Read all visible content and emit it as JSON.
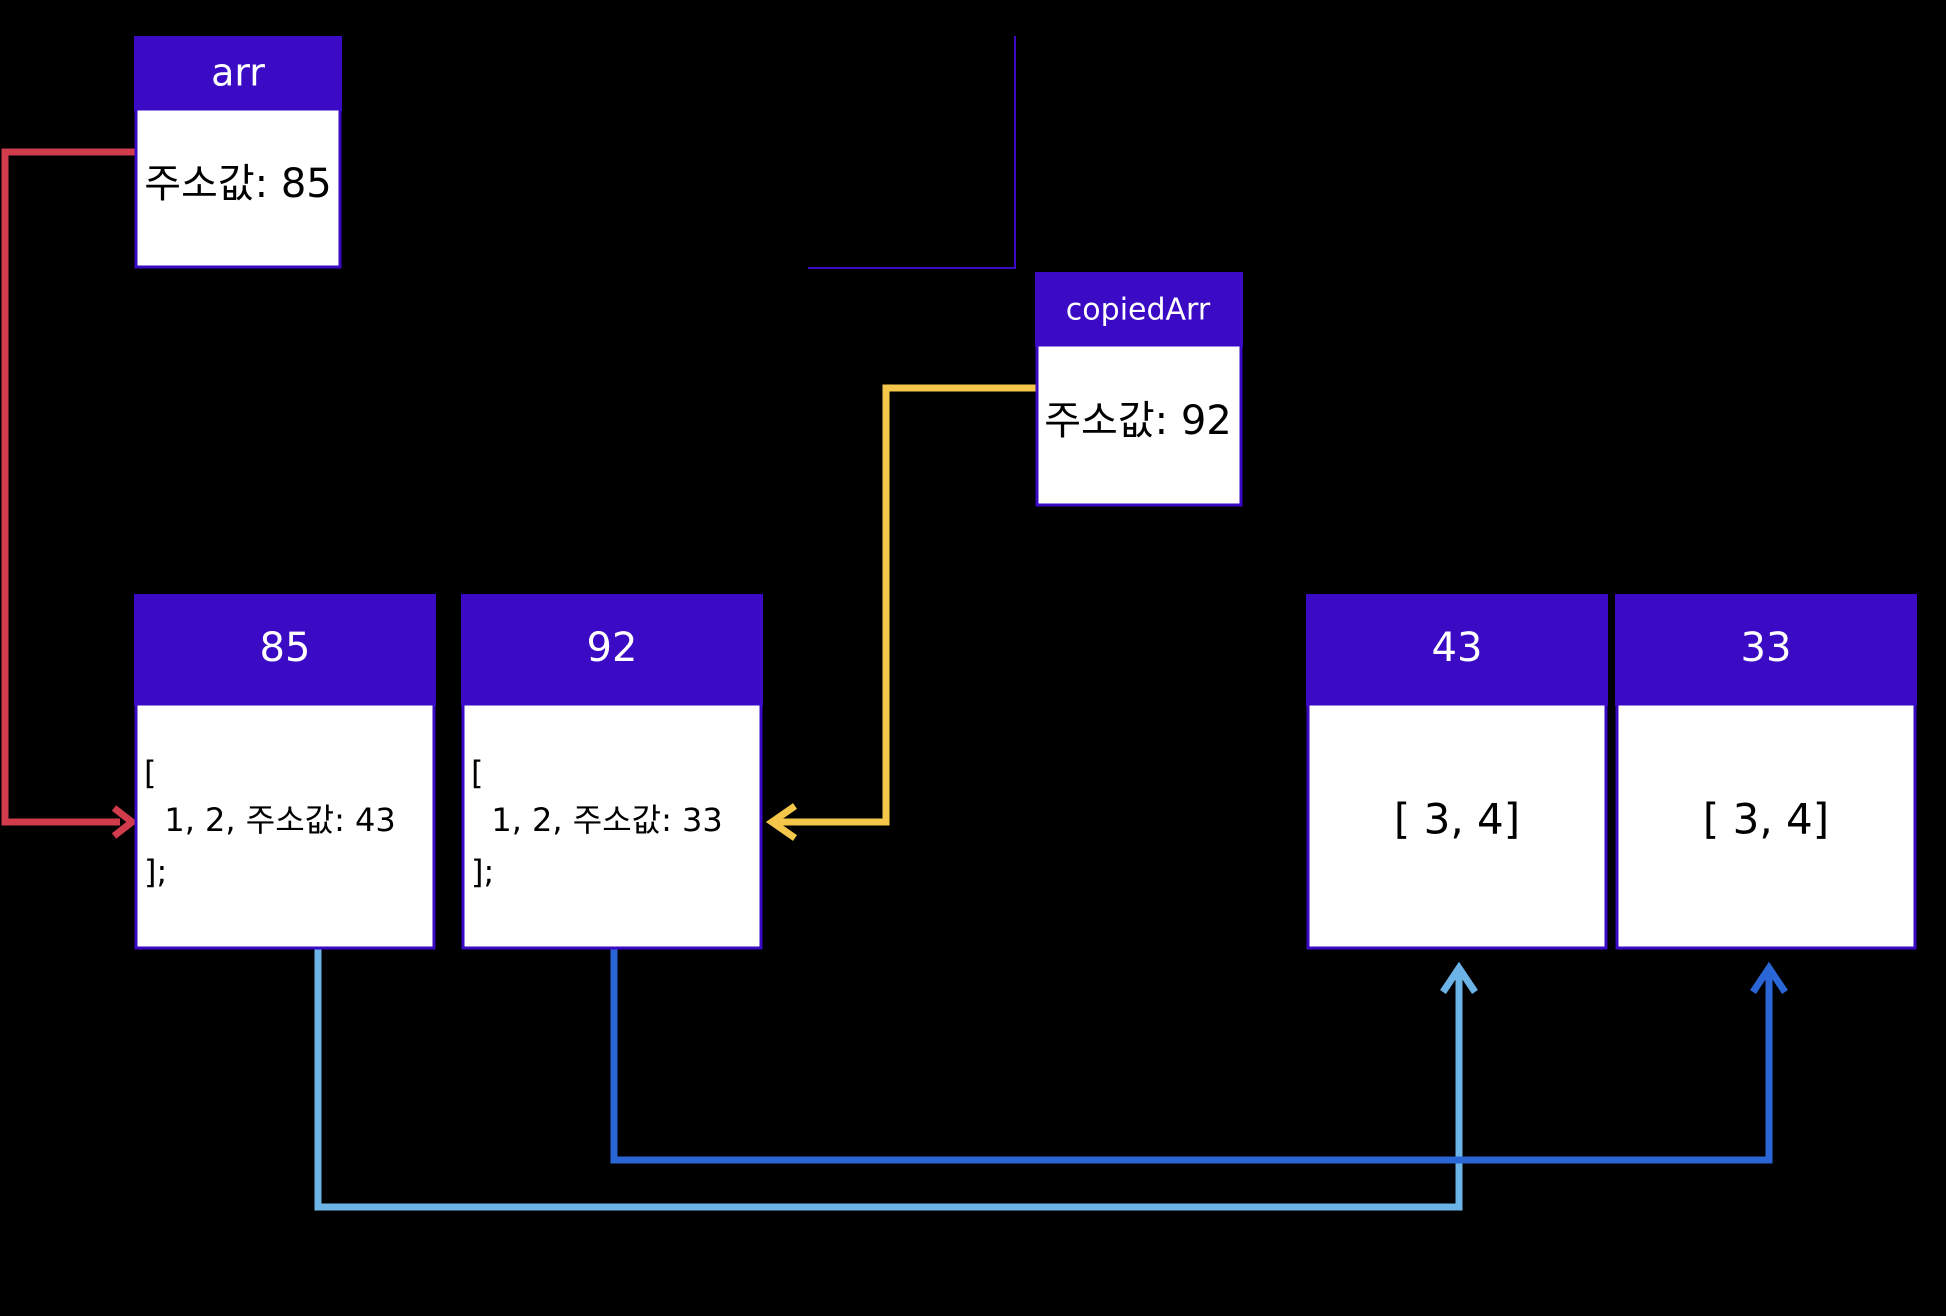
{
  "colors": {
    "background": "#000000",
    "box_header": "#3a0ac4",
    "box_border": "#3a0ac4",
    "box_body": "#ffffff",
    "arrow_arr": "#d13b4b",
    "arrow_copied": "#f4c74a",
    "arrow_43": "#6cb4e8",
    "arrow_33": "#2a66d6",
    "fragment_line": "#3a0ac4"
  },
  "variables": {
    "arr": {
      "name": "arr",
      "value": "주소값: 85"
    },
    "copiedArr": {
      "name": "copiedArr",
      "value": "주소값: 92"
    }
  },
  "heap": {
    "h85": {
      "address": "85",
      "line1": "[",
      "line2": "  1, 2, 주소값: 43",
      "line3": "];"
    },
    "h92": {
      "address": "92",
      "line1": "[",
      "line2": "  1, 2, 주소값: 33",
      "line3": "];"
    },
    "h43": {
      "address": "43",
      "content": "[ 3, 4]"
    },
    "h33": {
      "address": "33",
      "content": "[ 3, 4]"
    }
  },
  "arrows": [
    {
      "from": "arr",
      "to": "85",
      "color_key": "arrow_arr"
    },
    {
      "from": "copiedArr",
      "to": "92",
      "color_key": "arrow_copied"
    },
    {
      "from": "85",
      "to": "43",
      "color_key": "arrow_43"
    },
    {
      "from": "92",
      "to": "33",
      "color_key": "arrow_33"
    }
  ]
}
